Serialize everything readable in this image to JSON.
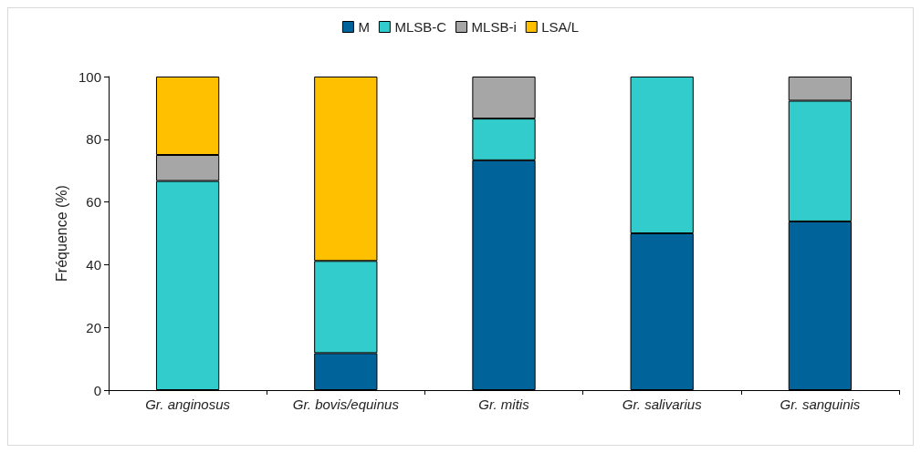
{
  "chart_data": {
    "type": "bar",
    "stacked": true,
    "ylabel": "Fréquence (%)",
    "categories": [
      "Gr. anginosus",
      "Gr. bovis/equinus",
      "Gr. mitis",
      "Gr. salivarius",
      "Gr. sanguinis"
    ],
    "series": [
      {
        "name": "M",
        "color": "#00649a",
        "values": [
          0,
          11.8,
          73.3,
          50,
          53.8
        ]
      },
      {
        "name": "MLSB-C",
        "color": "#33cccc",
        "values": [
          66.7,
          29.4,
          13.3,
          50,
          38.5
        ]
      },
      {
        "name": "MLSB-i",
        "color": "#a6a6a6",
        "values": [
          8.3,
          0,
          13.4,
          0,
          7.7
        ]
      },
      {
        "name": "LSA/L",
        "color": "#ffc000",
        "values": [
          25,
          58.8,
          0,
          0,
          0
        ]
      }
    ],
    "ylim": [
      0,
      100
    ],
    "yticks": [
      0,
      20,
      40,
      60,
      80,
      100
    ],
    "grid": false,
    "legend": "top"
  }
}
